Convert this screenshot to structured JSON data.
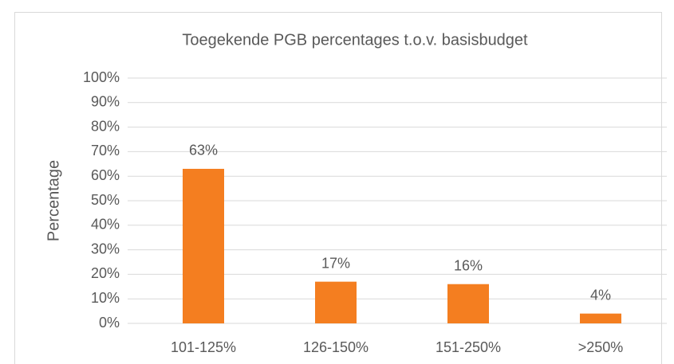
{
  "chart_data": {
    "type": "bar",
    "title": "Toegekende PGB percentages t.o.v. basisbudget",
    "y_label": "Percentage",
    "categories": [
      "101-125%",
      "126-150%",
      "151-250%",
      ">250%"
    ],
    "values": [
      63,
      17,
      16,
      4
    ],
    "value_labels": [
      "63%",
      "17%",
      "16%",
      "4%"
    ],
    "color": "#f47e20",
    "ylim": [
      0,
      100
    ],
    "yticks": [
      {
        "value": 0,
        "label": "0%"
      },
      {
        "value": 10,
        "label": "10%"
      },
      {
        "value": 20,
        "label": "20%"
      },
      {
        "value": 30,
        "label": "30%"
      },
      {
        "value": 40,
        "label": "40%"
      },
      {
        "value": 50,
        "label": "50%"
      },
      {
        "value": 60,
        "label": "60%"
      },
      {
        "value": 70,
        "label": "70%"
      },
      {
        "value": 80,
        "label": "80%"
      },
      {
        "value": 90,
        "label": "90%"
      },
      {
        "value": 100,
        "label": "100%"
      }
    ],
    "grid": true
  }
}
